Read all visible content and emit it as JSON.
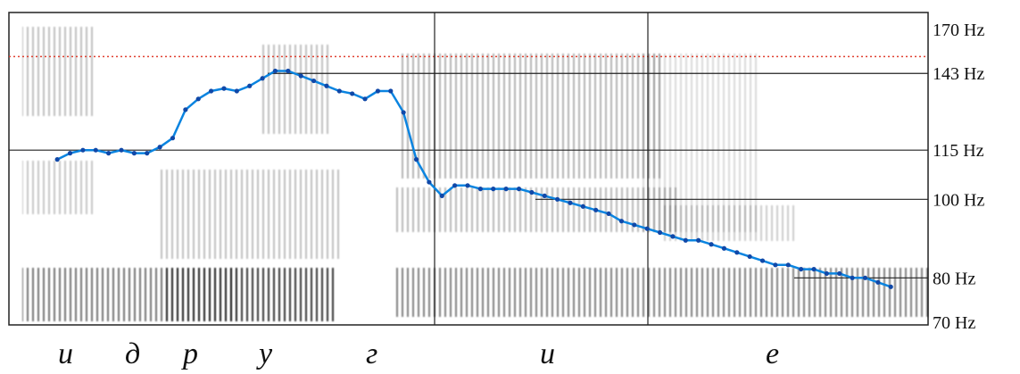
{
  "chart_data": {
    "type": "line",
    "title": "",
    "xlabel": "",
    "ylabel": "",
    "y_unit": "Hz",
    "y_ticks": [
      "170 Hz",
      "143 Hz",
      "115 Hz",
      "100 Hz",
      "80 Hz",
      "70 Hz"
    ],
    "y_tick_values": [
      170,
      143,
      115,
      100,
      80,
      70
    ],
    "ylim": [
      70,
      170
    ],
    "scale": "log",
    "reference_line_hz": 150,
    "vertical_boundaries_at_segment": [
      "г|и",
      "и|е"
    ],
    "segments": [
      "и",
      "д",
      "р",
      "у",
      "г",
      "и",
      "е"
    ],
    "series": [
      {
        "name": "",
        "color": "#0a84e0",
        "x": [
          0.02,
          0.035,
          0.05,
          0.065,
          0.08,
          0.095,
          0.11,
          0.125,
          0.14,
          0.155,
          0.17,
          0.185,
          0.2,
          0.215,
          0.23,
          0.245,
          0.26,
          0.275,
          0.29,
          0.305,
          0.32,
          0.335,
          0.35,
          0.365,
          0.38,
          0.395,
          0.41,
          0.425,
          0.44,
          0.455,
          0.47,
          0.485,
          0.5,
          0.515,
          0.53,
          0.545,
          0.56,
          0.575,
          0.59,
          0.605,
          0.62,
          0.635,
          0.65,
          0.665,
          0.68,
          0.695,
          0.71,
          0.725,
          0.74,
          0.755,
          0.77,
          0.785,
          0.8,
          0.815,
          0.83,
          0.845,
          0.86,
          0.875,
          0.89,
          0.905,
          0.92,
          0.935,
          0.95,
          0.965,
          0.98,
          0.995
        ],
        "values": [
          112,
          114,
          115,
          115,
          114,
          115,
          114,
          114,
          116,
          119,
          129,
          133,
          136,
          137,
          136,
          138,
          141,
          144,
          144,
          142,
          140,
          138,
          136,
          135,
          133,
          136,
          136,
          128,
          112,
          105,
          101,
          104,
          104,
          103,
          103,
          103,
          103,
          102,
          101,
          100,
          99,
          98,
          97,
          96,
          94,
          93,
          92,
          91,
          90,
          89,
          89,
          88,
          87,
          86,
          85,
          84,
          83,
          83,
          82,
          82,
          81,
          81,
          80,
          80,
          79,
          78
        ]
      }
    ]
  }
}
